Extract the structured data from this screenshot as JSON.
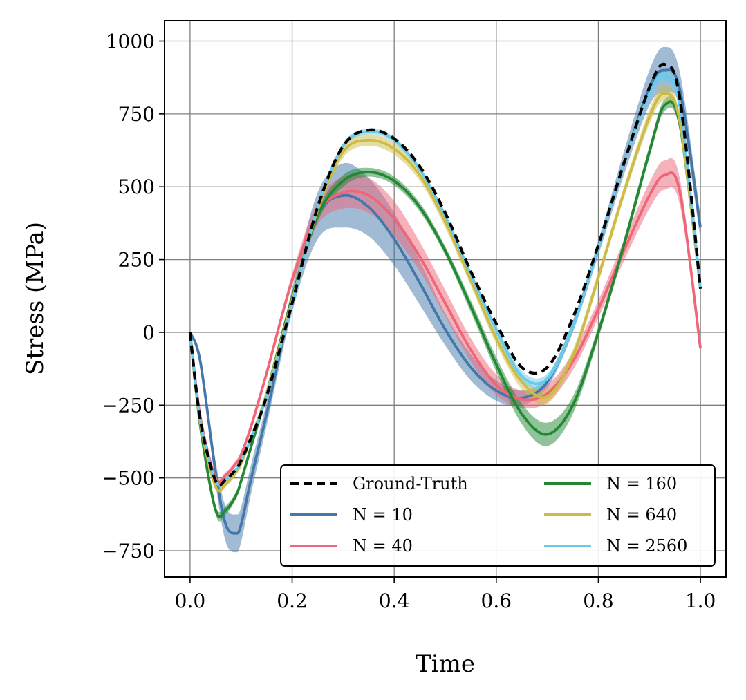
{
  "chart_data": {
    "type": "line",
    "title": "",
    "xlabel": "Time",
    "ylabel": "Stress (MPa)",
    "xlim": [
      -0.05,
      1.05
    ],
    "ylim": [
      -840,
      1070
    ],
    "grid": true,
    "legend_position": "lower-right",
    "legend_columns": 2,
    "x_ticks": [
      0.0,
      0.2,
      0.4,
      0.6,
      0.8,
      1.0
    ],
    "x_tick_labels": [
      "0.0",
      "0.2",
      "0.4",
      "0.6",
      "0.8",
      "1.0"
    ],
    "y_ticks": [
      -750,
      -500,
      -250,
      0,
      250,
      500,
      750,
      1000
    ],
    "y_tick_labels": [
      "−750",
      "−500",
      "−250",
      "0",
      "250",
      "500",
      "750",
      "1000"
    ],
    "x": [
      0.0,
      0.02,
      0.05,
      0.07,
      0.09,
      0.1,
      0.12,
      0.15,
      0.2,
      0.25,
      0.3,
      0.35,
      0.4,
      0.45,
      0.5,
      0.55,
      0.6,
      0.65,
      0.7,
      0.75,
      0.8,
      0.85,
      0.9,
      0.93,
      0.96,
      1.0
    ],
    "series": [
      {
        "name": "Ground-Truth",
        "color": "#000000",
        "dashed": true,
        "values": [
          0,
          -300,
          -510,
          -505,
          -470,
          -440,
          -360,
          -220,
          100,
          430,
          640,
          695,
          665,
          570,
          410,
          210,
          30,
          -120,
          -120,
          50,
          300,
          580,
          840,
          920,
          800,
          150
        ],
        "band": [
          0,
          0,
          0,
          0,
          0,
          0,
          0,
          0,
          0,
          0,
          0,
          0,
          0,
          0,
          0,
          0,
          0,
          0,
          0,
          0,
          0,
          0,
          0,
          0,
          0,
          0
        ]
      },
      {
        "name": "N = 10",
        "color": "#4477aa",
        "dashed": false,
        "values": [
          0,
          -100,
          -480,
          -660,
          -690,
          -660,
          -500,
          -280,
          110,
          400,
          470,
          430,
          320,
          170,
          10,
          -120,
          -200,
          -225,
          -170,
          20,
          290,
          580,
          840,
          900,
          830,
          360
        ],
        "band": [
          5,
          15,
          40,
          60,
          65,
          60,
          50,
          40,
          40,
          80,
          110,
          100,
          90,
          75,
          55,
          45,
          35,
          25,
          20,
          20,
          25,
          40,
          60,
          80,
          60,
          40
        ]
      },
      {
        "name": "N = 40",
        "color": "#ee6677",
        "dashed": false,
        "values": [
          0,
          -290,
          -500,
          -490,
          -450,
          -420,
          -320,
          -140,
          180,
          410,
          480,
          470,
          390,
          260,
          100,
          -60,
          -180,
          -230,
          -210,
          -100,
          80,
          280,
          470,
          540,
          480,
          -55
        ],
        "band": [
          3,
          5,
          10,
          10,
          10,
          10,
          10,
          10,
          20,
          40,
          55,
          60,
          60,
          50,
          45,
          40,
          35,
          30,
          30,
          30,
          30,
          35,
          45,
          50,
          45,
          10
        ]
      },
      {
        "name": "N = 160",
        "color": "#228833",
        "dashed": false,
        "values": [
          0,
          -320,
          -610,
          -610,
          -560,
          -510,
          -390,
          -210,
          120,
          400,
          520,
          550,
          520,
          430,
          280,
          90,
          -110,
          -280,
          -350,
          -250,
          0,
          300,
          620,
          780,
          710,
          150
        ],
        "band": [
          3,
          5,
          15,
          15,
          12,
          10,
          10,
          10,
          15,
          20,
          20,
          15,
          15,
          15,
          15,
          20,
          25,
          35,
          40,
          30,
          20,
          20,
          20,
          20,
          20,
          10
        ]
      },
      {
        "name": "N = 640",
        "color": "#ccbb44",
        "dashed": false,
        "values": [
          0,
          -310,
          -530,
          -520,
          -480,
          -450,
          -360,
          -210,
          110,
          420,
          620,
          660,
          630,
          540,
          380,
          180,
          -20,
          -170,
          -220,
          -80,
          190,
          480,
          740,
          820,
          720,
          150
        ],
        "band": [
          2,
          5,
          10,
          10,
          10,
          10,
          10,
          10,
          10,
          15,
          20,
          20,
          20,
          20,
          20,
          20,
          20,
          25,
          25,
          20,
          20,
          20,
          25,
          25,
          20,
          10
        ]
      },
      {
        "name": "N = 2560",
        "color": "#66ccee",
        "dashed": false,
        "values": [
          0,
          -300,
          -510,
          -505,
          -470,
          -440,
          -360,
          -220,
          100,
          430,
          640,
          690,
          660,
          560,
          400,
          200,
          10,
          -150,
          -160,
          20,
          290,
          580,
          820,
          880,
          770,
          150
        ],
        "band": [
          2,
          4,
          8,
          8,
          8,
          8,
          8,
          8,
          8,
          10,
          10,
          10,
          10,
          10,
          10,
          12,
          15,
          18,
          18,
          15,
          15,
          15,
          20,
          20,
          15,
          8
        ]
      }
    ]
  }
}
